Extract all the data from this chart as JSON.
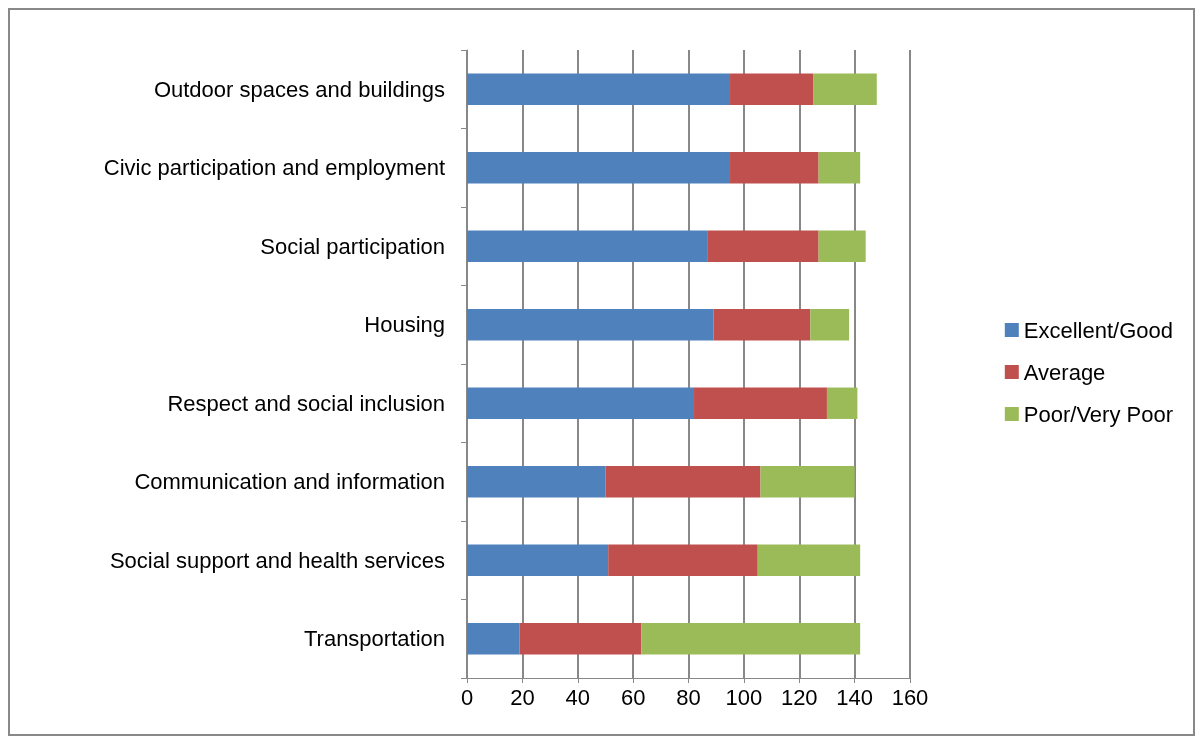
{
  "chart_data": {
    "type": "bar",
    "orientation": "horizontal",
    "stacked": true,
    "categories": [
      "Outdoor spaces and buildings",
      "Civic participation and employment",
      "Social participation",
      "Housing",
      "Respect and social inclusion",
      "Communication and information",
      "Social support and health services",
      "Transportation"
    ],
    "series": [
      {
        "name": "Excellent/Good",
        "color": "#4f81bd",
        "values": [
          95,
          95,
          87,
          89,
          82,
          50,
          51,
          19
        ]
      },
      {
        "name": "Average",
        "color": "#c0504d",
        "values": [
          30,
          32,
          40,
          35,
          48,
          56,
          54,
          44
        ]
      },
      {
        "name": "Poor/Very Poor",
        "color": "#9bbb59",
        "values": [
          23,
          15,
          17,
          14,
          11,
          34,
          37,
          79
        ]
      }
    ],
    "xlim": [
      0,
      160
    ],
    "xticks": [
      0,
      20,
      40,
      60,
      80,
      100,
      120,
      140,
      160
    ],
    "grid": "x",
    "legend": "right"
  }
}
